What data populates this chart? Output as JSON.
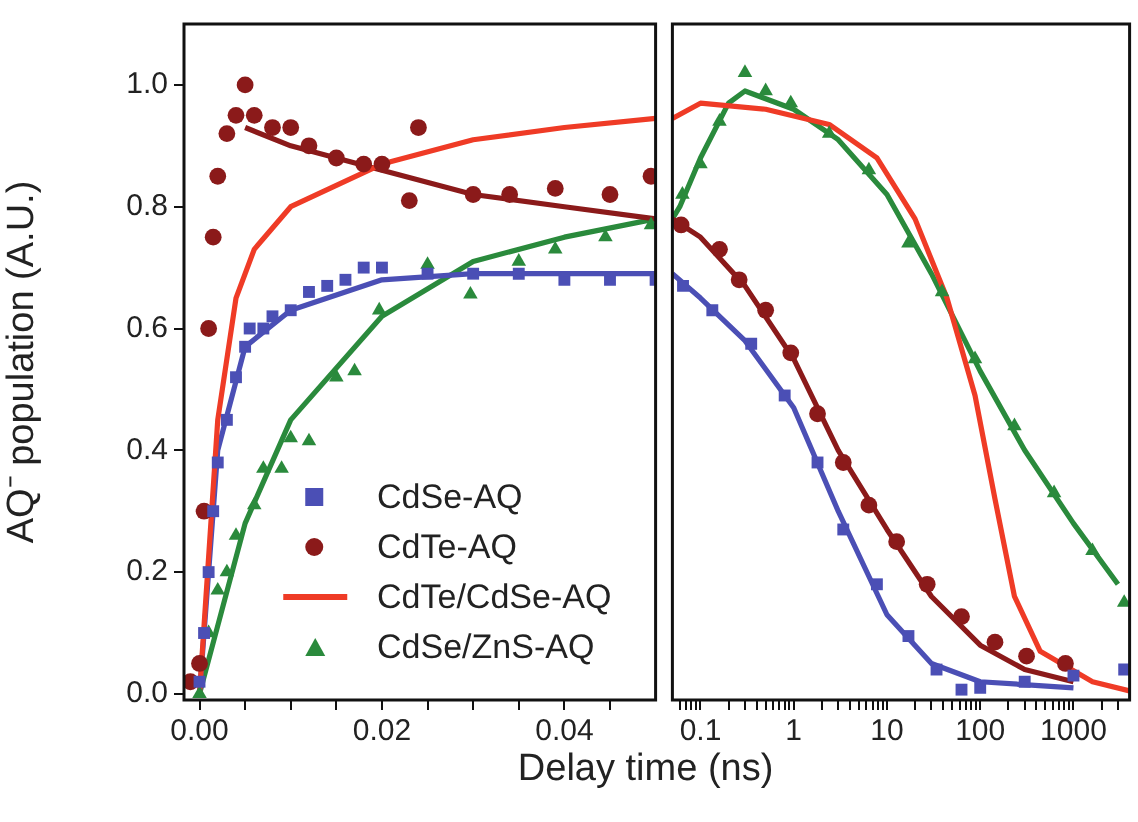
{
  "chart_data": [
    {
      "type": "scatter",
      "ylabel": "AQ⁻ population (A.U.)",
      "xlabel": "Delay time (ns)",
      "xlim": [
        -0.0017,
        0.05
      ],
      "ylim": [
        -0.01,
        1.1
      ],
      "xticks": [
        {
          "value": 0,
          "label": "0.00"
        },
        {
          "value": 0.005,
          "label": null
        },
        {
          "value": 0.01,
          "label": null
        },
        {
          "value": 0.015,
          "label": null
        },
        {
          "value": 0.02,
          "label": "0.02"
        },
        {
          "value": 0.025,
          "label": null
        },
        {
          "value": 0.03,
          "label": null
        },
        {
          "value": 0.035,
          "label": null
        },
        {
          "value": 0.04,
          "label": "0.04"
        },
        {
          "value": 0.045,
          "label": null
        }
      ],
      "yticks": [
        {
          "value": 0,
          "label": "0.0"
        },
        {
          "value": 0.2,
          "label": "0.2"
        },
        {
          "value": 0.4,
          "label": "0.4"
        },
        {
          "value": 0.6,
          "label": "0.6"
        },
        {
          "value": 0.8,
          "label": "0.8"
        },
        {
          "value": 1,
          "label": "1.0"
        }
      ],
      "legend": "bottom",
      "series": [
        {
          "name": "CdSe-AQ",
          "type": "scatter",
          "marker": "square",
          "color": "#4b4fb5",
          "x": [
            0,
            0.0005,
            0.001,
            0.0015,
            0.002,
            0.003,
            0.004,
            0.005,
            0.0055,
            0.007,
            0.008,
            0.01,
            0.012,
            0.014,
            0.016,
            0.018,
            0.02,
            0.025,
            0.03,
            0.035,
            0.04,
            0.045,
            0.05
          ],
          "values": [
            0.02,
            0.1,
            0.2,
            0.3,
            0.38,
            0.45,
            0.52,
            0.57,
            0.6,
            0.6,
            0.62,
            0.63,
            0.66,
            0.67,
            0.68,
            0.7,
            0.7,
            0.69,
            0.69,
            0.69,
            0.68,
            0.68,
            0.68
          ]
        },
        {
          "name": "CdTe-AQ",
          "type": "scatter",
          "marker": "circle",
          "color": "#8b1a1a",
          "x": [
            -0.001,
            0,
            0.0005,
            0.001,
            0.0015,
            0.002,
            0.003,
            0.004,
            0.005,
            0.006,
            0.008,
            0.01,
            0.012,
            0.015,
            0.018,
            0.02,
            0.023,
            0.024,
            0.03,
            0.034,
            0.039,
            0.045,
            0.0495
          ],
          "values": [
            0.02,
            0.05,
            0.3,
            0.6,
            0.75,
            0.85,
            0.92,
            0.95,
            1.0,
            0.95,
            0.93,
            0.93,
            0.9,
            0.88,
            0.87,
            0.87,
            0.81,
            0.93,
            0.82,
            0.82,
            0.83,
            0.82,
            0.85
          ]
        },
        {
          "name": "CdTe/CdSe-AQ",
          "type": "line",
          "marker": "none",
          "color": "#ef3b26",
          "x": [
            0,
            0.002,
            0.004,
            0.006,
            0.01,
            0.02,
            0.03,
            0.04,
            0.05
          ],
          "values": [
            0,
            0.45,
            0.65,
            0.73,
            0.8,
            0.87,
            0.91,
            0.93,
            0.945
          ]
        },
        {
          "name": "CdSe/ZnS-AQ",
          "type": "scatter",
          "marker": "triangle",
          "color": "#2a8a3c",
          "x": [
            0,
            0.001,
            0.002,
            0.003,
            0.004,
            0.006,
            0.007,
            0.009,
            0.01,
            0.012,
            0.015,
            0.017,
            0.0197,
            0.025,
            0.0297,
            0.035,
            0.039,
            0.0445,
            0.0495
          ],
          "values": [
            0,
            0.1,
            0.17,
            0.2,
            0.26,
            0.31,
            0.37,
            0.37,
            0.42,
            0.415,
            0.52,
            0.53,
            0.63,
            0.705,
            0.656,
            0.71,
            0.73,
            0.75,
            0.77
          ]
        },
        {
          "type": "line",
          "marker": "none",
          "color": "#4b4fb5",
          "x": [
            0,
            0.002,
            0.005,
            0.01,
            0.02,
            0.03,
            0.05
          ],
          "values": [
            0,
            0.4,
            0.57,
            0.63,
            0.68,
            0.69,
            0.69
          ]
        },
        {
          "type": "line",
          "marker": "none",
          "color": "#8b1a1a",
          "x": [
            0.005,
            0.01,
            0.02,
            0.03,
            0.04,
            0.05
          ],
          "values": [
            0.93,
            0.9,
            0.86,
            0.82,
            0.8,
            0.78
          ]
        },
        {
          "type": "line",
          "marker": "none",
          "color": "#2a8a3c",
          "x": [
            0,
            0.005,
            0.01,
            0.02,
            0.03,
            0.04,
            0.05
          ],
          "values": [
            0,
            0.28,
            0.45,
            0.62,
            0.71,
            0.75,
            0.78
          ]
        }
      ]
    },
    {
      "type": "scatter",
      "log": "x",
      "tick_labels": "x",
      "xlim": [
        0.05,
        4000
      ],
      "ylim": [
        -0.01,
        1.1
      ],
      "xticks": [
        {
          "value": 0.06,
          "label": null
        },
        {
          "value": 0.07,
          "label": null
        },
        {
          "value": 0.08,
          "label": null
        },
        {
          "value": 0.09,
          "label": null
        },
        0.1,
        {
          "value": 0.2,
          "label": null
        },
        {
          "value": 0.3,
          "label": null
        },
        {
          "value": 0.4,
          "label": null
        },
        {
          "value": 0.5,
          "label": null
        },
        {
          "value": 0.6,
          "label": null
        },
        {
          "value": 0.7,
          "label": null
        },
        {
          "value": 0.8,
          "label": null
        },
        {
          "value": 0.9,
          "label": null
        },
        1,
        {
          "value": 2,
          "label": null
        },
        {
          "value": 3,
          "label": null
        },
        {
          "value": 4,
          "label": null
        },
        {
          "value": 5,
          "label": null
        },
        {
          "value": 6,
          "label": null
        },
        {
          "value": 7,
          "label": null
        },
        {
          "value": 8,
          "label": null
        },
        {
          "value": 9,
          "label": null
        },
        10,
        {
          "value": 20,
          "label": null
        },
        {
          "value": 30,
          "label": null
        },
        {
          "value": 40,
          "label": null
        },
        {
          "value": 50,
          "label": null
        },
        {
          "value": 60,
          "label": null
        },
        {
          "value": 70,
          "label": null
        },
        {
          "value": 80,
          "label": null
        },
        {
          "value": 90,
          "label": null
        },
        100,
        {
          "value": 200,
          "label": null
        },
        {
          "value": 300,
          "label": null
        },
        {
          "value": 400,
          "label": null
        },
        {
          "value": 500,
          "label": null
        },
        {
          "value": 600,
          "label": null
        },
        {
          "value": 700,
          "label": null
        },
        {
          "value": 800,
          "label": null
        },
        {
          "value": 900,
          "label": null
        },
        1000,
        {
          "value": 2000,
          "label": null
        },
        {
          "value": 3000,
          "label": null
        }
      ],
      "series": [
        {
          "type": "scatter",
          "marker": "square",
          "color": "#4b4fb5",
          "x": [
            0.065,
            0.134,
            0.35,
            0.8,
            1.8,
            3.4,
            7.8,
            17,
            34,
            63,
            100,
            300,
            1000,
            3500
          ],
          "values": [
            0.67,
            0.63,
            0.575,
            0.49,
            0.38,
            0.27,
            0.18,
            0.095,
            0.04,
            0.007,
            0.01,
            0.02,
            0.03,
            0.04
          ]
        },
        {
          "type": "scatter",
          "marker": "circle",
          "color": "#8b1a1a",
          "x": [
            0.062,
            0.16,
            0.26,
            0.5,
            0.93,
            1.8,
            3.4,
            6.4,
            12.7,
            27,
            63,
            144,
            314,
            820
          ],
          "values": [
            0.77,
            0.73,
            0.68,
            0.63,
            0.56,
            0.46,
            0.38,
            0.31,
            0.25,
            0.18,
            0.127,
            0.085,
            0.062,
            0.05
          ]
        },
        {
          "type": "line",
          "marker": "none",
          "color": "#ef3b26",
          "x": [
            0.05,
            0.1,
            0.5,
            2.4,
            7.8,
            20,
            44,
            88,
            144,
            233,
            440,
            1600,
            4000
          ],
          "values": [
            0.945,
            0.97,
            0.96,
            0.935,
            0.88,
            0.78,
            0.65,
            0.49,
            0.32,
            0.16,
            0.07,
            0.02,
            0.005
          ]
        },
        {
          "type": "scatter",
          "marker": "triangle",
          "color": "#2a8a3c",
          "x": [
            0.064,
            0.1,
            0.16,
            0.3,
            0.5,
            0.93,
            2.4,
            6.4,
            17,
            39,
            88,
            233,
            620,
            1600,
            3500
          ],
          "values": [
            0.82,
            0.87,
            0.94,
            1.02,
            0.99,
            0.97,
            0.92,
            0.86,
            0.74,
            0.66,
            0.55,
            0.44,
            0.33,
            0.235,
            0.15
          ]
        },
        {
          "type": "line",
          "marker": "none",
          "color": "#4b4fb5",
          "x": [
            0.05,
            0.1,
            0.3,
            1,
            3,
            10,
            30,
            100,
            1000
          ],
          "values": [
            0.69,
            0.65,
            0.58,
            0.47,
            0.3,
            0.13,
            0.05,
            0.02,
            0.01
          ]
        },
        {
          "type": "line",
          "marker": "none",
          "color": "#8b1a1a",
          "x": [
            0.05,
            0.1,
            0.3,
            1,
            3,
            10,
            30,
            100,
            300,
            1000
          ],
          "values": [
            0.78,
            0.75,
            0.67,
            0.55,
            0.4,
            0.27,
            0.16,
            0.08,
            0.04,
            0.02
          ]
        },
        {
          "type": "line",
          "marker": "none",
          "color": "#2a8a3c",
          "x": [
            0.05,
            0.06,
            0.1,
            0.2,
            0.3,
            1,
            3,
            10,
            30,
            100,
            300,
            1000,
            3000
          ],
          "values": [
            0.78,
            0.8,
            0.88,
            0.97,
            0.99,
            0.96,
            0.91,
            0.82,
            0.69,
            0.53,
            0.4,
            0.28,
            0.18
          ]
        }
      ]
    }
  ]
}
